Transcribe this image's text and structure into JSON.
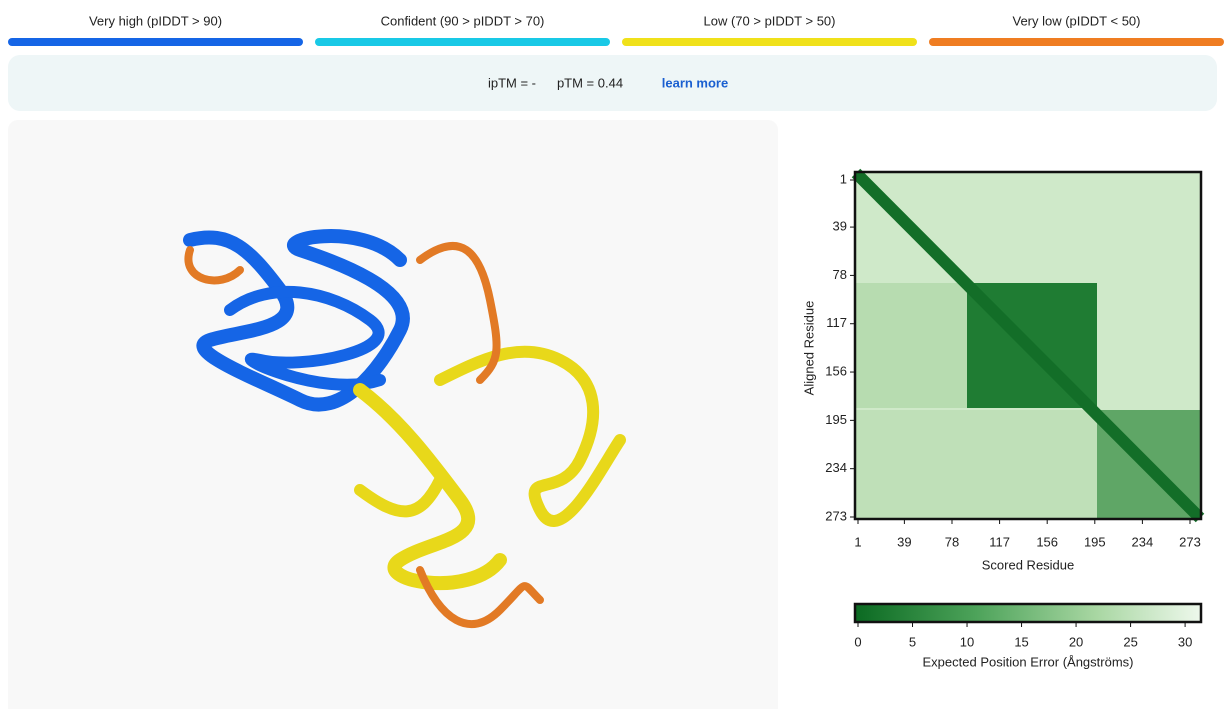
{
  "legend": [
    {
      "label": "Very high (pIDDT > 90)",
      "color": "#1565e6"
    },
    {
      "label": "Confident (90 > pIDDT > 70)",
      "color": "#19c9e6"
    },
    {
      "label": "Low (70 > pIDDT > 50)",
      "color": "#f0e11a"
    },
    {
      "label": "Very low (pIDDT < 50)",
      "color": "#ef7d22"
    }
  ],
  "scores": {
    "iptm": "ipTM = -",
    "ptm": "pTM = 0.44",
    "link": "learn more"
  },
  "pae": {
    "xlabel": "Scored Residue",
    "ylabel": "Aligned Residue",
    "xlim": [
      1,
      273
    ],
    "ylim": [
      1,
      273
    ],
    "xticks": [
      1,
      39,
      78,
      117,
      156,
      195,
      234,
      273
    ],
    "yticks": [
      1,
      39,
      78,
      117,
      156,
      195,
      234,
      273
    ],
    "colorbar": {
      "label": "Expected Position Error (Ångströms)",
      "lim": [
        0,
        31
      ],
      "ticks": [
        0,
        5,
        10,
        15,
        20,
        25,
        30
      ]
    }
  }
}
